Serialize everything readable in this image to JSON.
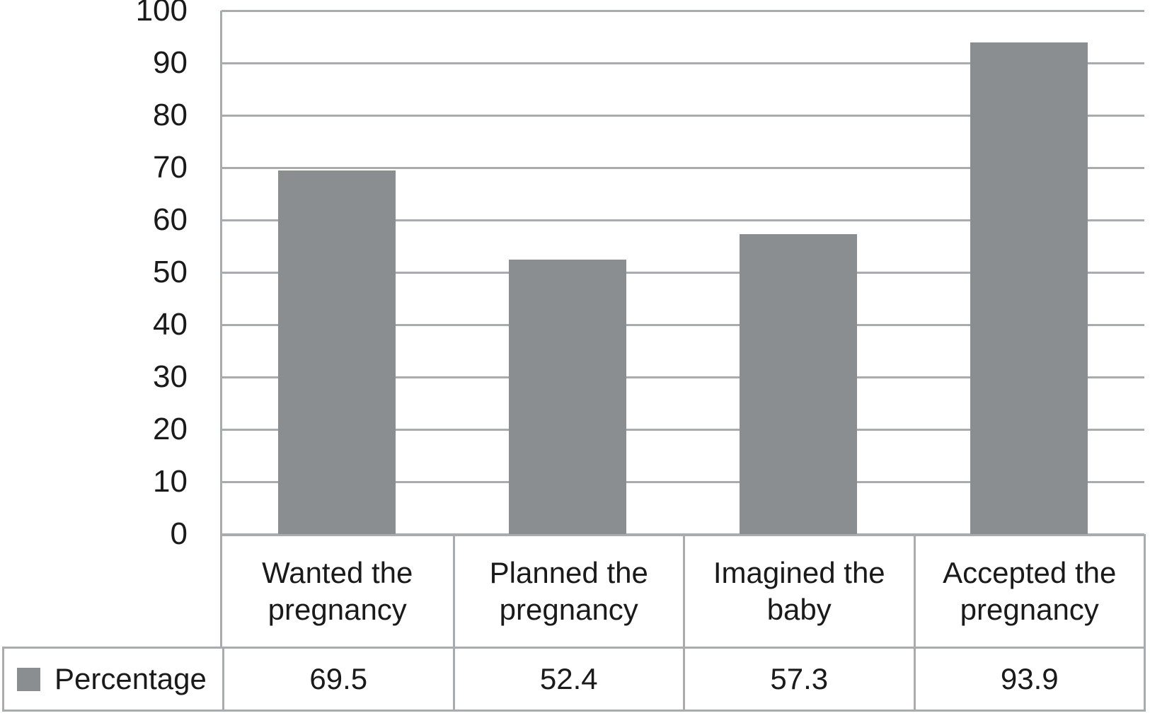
{
  "chart_data": {
    "type": "bar",
    "title": "",
    "categories": [
      "Wanted the pregnancy",
      "Planned the pregnancy",
      "Imagined the baby",
      "Accepted the pregnancy"
    ],
    "series": [
      {
        "name": "Percentage",
        "values": [
          69.5,
          52.4,
          57.3,
          93.9
        ]
      }
    ],
    "value_labels": [
      "69.5",
      "52.4",
      "57.3",
      "93.9"
    ],
    "xlabel": "",
    "ylabel": "",
    "ylim": [
      0,
      100
    ],
    "ytick_step": 10,
    "ytick_labels": [
      "0",
      "10",
      "20",
      "30",
      "40",
      "50",
      "60",
      "70",
      "80",
      "90",
      "100"
    ],
    "grid": "horizontal",
    "legend_position": "table-left",
    "colors": {
      "bar": "#8a8e91",
      "gridline": "#a9acae",
      "table_border": "#a9acae",
      "text": "#1a1a1a",
      "background": "#ffffff"
    }
  }
}
